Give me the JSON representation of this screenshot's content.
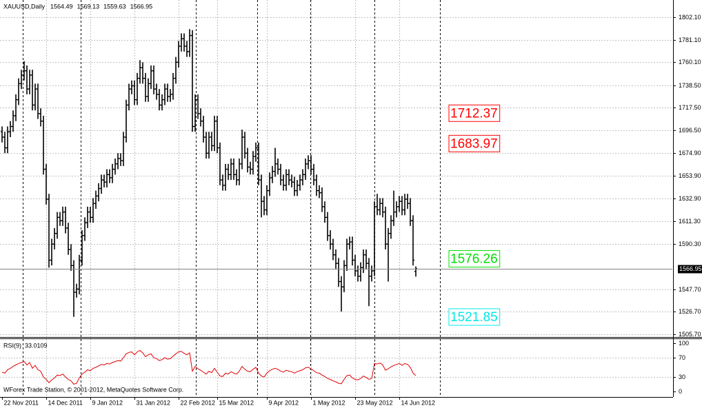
{
  "chart_data": {
    "type": "ohlc",
    "title": "XAUUSD,Daily",
    "footer": "WForex Trade Station, © 2001-2012, MetaQuotes Software Corp.",
    "color": "#000000",
    "grid": true,
    "xlim": [
      -0.75,
      243
    ],
    "xticks": [
      {
        "value": 0,
        "label": "22 Nov 2011"
      },
      {
        "value": 16,
        "label": "14 Dec 2011"
      },
      {
        "value": 32,
        "label": "9 Jan 2012"
      },
      {
        "value": 48,
        "label": "31 Jan 2012"
      },
      {
        "value": 64,
        "label": "22 Feb 2012"
      },
      {
        "value": 78,
        "label": "15 Mar 2012"
      },
      {
        "value": 96,
        "label": "9 Apr 2012"
      },
      {
        "value": 112,
        "label": "1 May 2012"
      },
      {
        "value": 128,
        "label": "23 May 2012"
      },
      {
        "value": 144,
        "label": "14 Jun 2012"
      }
    ],
    "ylim": [
      1503.8,
      1818.2
    ],
    "yticks": [
      {
        "value": 1802.1,
        "label": "1802.10"
      },
      {
        "value": 1781.1,
        "label": "1781.10"
      },
      {
        "value": 1760.1,
        "label": "1760.10"
      },
      {
        "value": 1738.5,
        "label": "1738.50"
      },
      {
        "value": 1717.5,
        "label": "1717.50"
      },
      {
        "value": 1696.5,
        "label": "1696.50"
      },
      {
        "value": 1674.9,
        "label": "1674.90"
      },
      {
        "value": 1653.9,
        "label": "1653.90"
      },
      {
        "value": 1632.9,
        "label": "1632.90"
      },
      {
        "value": 1611.3,
        "label": "1611.30"
      },
      {
        "value": 1590.3,
        "label": "1590.30"
      },
      {
        "value": 1547.7,
        "label": "1547.70"
      },
      {
        "value": 1526.7,
        "label": "1526.70"
      },
      {
        "value": 1505.7,
        "label": "1505.70"
      }
    ],
    "open": [
      1695,
      1690,
      1680,
      1695,
      1700,
      1710,
      1725,
      1740,
      1748,
      1752,
      1735,
      1748,
      1720,
      1735,
      1712,
      1705,
      1660,
      1632,
      1575,
      1590,
      1600,
      1615,
      1612,
      1620,
      1605,
      1585,
      1570,
      1545,
      1548,
      1575,
      1598,
      1610,
      1620,
      1615,
      1628,
      1635,
      1642,
      1650,
      1648,
      1655,
      1652,
      1660,
      1665,
      1670,
      1668,
      1690,
      1720,
      1735,
      1738,
      1725,
      1745,
      1755,
      1745,
      1728,
      1740,
      1752,
      1735,
      1730,
      1720,
      1725,
      1735,
      1728,
      1730,
      1745,
      1760,
      1775,
      1782,
      1775,
      1770,
      1785,
      1700,
      1725,
      1712,
      1705,
      1690,
      1675,
      1690,
      1682,
      1705,
      1680,
      1650,
      1645,
      1660,
      1655,
      1665,
      1655,
      1650,
      1665,
      1690,
      1675,
      1662,
      1660,
      1672,
      1680,
      1650,
      1630,
      1622,
      1640,
      1652,
      1658,
      1665,
      1660,
      1650,
      1645,
      1655,
      1650,
      1648,
      1640,
      1645,
      1650,
      1655,
      1665,
      1668,
      1660,
      1650,
      1640,
      1638,
      1625,
      1615,
      1598,
      1590,
      1580,
      1572,
      1555,
      1550,
      1570,
      1590,
      1592,
      1575,
      1565,
      1560,
      1568,
      1580,
      1572,
      1560,
      1565,
      1625,
      1622,
      1628,
      1620,
      1590,
      1600,
      1612,
      1620,
      1625,
      1630,
      1622,
      1632,
      1628,
      1612,
      1564.49
    ],
    "high": [
      1700,
      1695,
      1700,
      1705,
      1715,
      1730,
      1745,
      1753,
      1761,
      1757,
      1753,
      1753,
      1740,
      1740,
      1717,
      1710,
      1665,
      1637,
      1595,
      1605,
      1620,
      1620,
      1625,
      1625,
      1610,
      1590,
      1575,
      1553,
      1580,
      1603,
      1615,
      1625,
      1625,
      1633,
      1640,
      1647,
      1655,
      1655,
      1660,
      1660,
      1665,
      1670,
      1675,
      1675,
      1695,
      1725,
      1740,
      1743,
      1743,
      1750,
      1762,
      1760,
      1750,
      1745,
      1757,
      1757,
      1740,
      1735,
      1730,
      1740,
      1740,
      1735,
      1750,
      1765,
      1780,
      1787,
      1787,
      1780,
      1791,
      1790,
      1730,
      1730,
      1717,
      1710,
      1695,
      1695,
      1695,
      1710,
      1710,
      1685,
      1655,
      1665,
      1665,
      1670,
      1670,
      1660,
      1670,
      1697,
      1695,
      1680,
      1667,
      1677,
      1685,
      1685,
      1655,
      1635,
      1645,
      1657,
      1663,
      1680,
      1670,
      1665,
      1655,
      1660,
      1660,
      1655,
      1653,
      1650,
      1655,
      1660,
      1670,
      1673,
      1673,
      1665,
      1655,
      1645,
      1643,
      1630,
      1620,
      1603,
      1595,
      1585,
      1577,
      1560,
      1575,
      1595,
      1597,
      1597,
      1580,
      1570,
      1573,
      1585,
      1585,
      1577,
      1570,
      1630,
      1637,
      1633,
      1633,
      1625,
      1605,
      1617,
      1640,
      1630,
      1635,
      1635,
      1637,
      1637,
      1633,
      1617,
      1569.13
    ],
    "low": [
      1685,
      1675,
      1675,
      1690,
      1695,
      1705,
      1720,
      1735,
      1743,
      1730,
      1730,
      1715,
      1715,
      1707,
      1700,
      1655,
      1627,
      1568,
      1570,
      1585,
      1595,
      1607,
      1607,
      1600,
      1580,
      1565,
      1522,
      1540,
      1543,
      1570,
      1593,
      1605,
      1610,
      1610,
      1623,
      1630,
      1637,
      1643,
      1643,
      1647,
      1647,
      1655,
      1660,
      1663,
      1663,
      1685,
      1715,
      1730,
      1720,
      1720,
      1740,
      1740,
      1723,
      1723,
      1735,
      1730,
      1725,
      1715,
      1715,
      1720,
      1723,
      1723,
      1725,
      1740,
      1755,
      1770,
      1770,
      1765,
      1765,
      1695,
      1695,
      1707,
      1700,
      1685,
      1670,
      1670,
      1677,
      1677,
      1675,
      1645,
      1640,
      1640,
      1650,
      1650,
      1650,
      1645,
      1645,
      1660,
      1670,
      1657,
      1655,
      1655,
      1667,
      1645,
      1615,
      1617,
      1617,
      1635,
      1647,
      1653,
      1655,
      1645,
      1640,
      1640,
      1645,
      1643,
      1635,
      1635,
      1640,
      1645,
      1650,
      1660,
      1655,
      1645,
      1635,
      1633,
      1620,
      1610,
      1593,
      1585,
      1575,
      1567,
      1550,
      1527,
      1545,
      1565,
      1585,
      1570,
      1560,
      1555,
      1555,
      1563,
      1567,
      1532,
      1555,
      1560,
      1617,
      1617,
      1615,
      1585,
      1555,
      1595,
      1607,
      1615,
      1620,
      1617,
      1617,
      1623,
      1607,
      1570,
      1559.63
    ],
    "close": [
      1690,
      1680,
      1695,
      1700,
      1710,
      1725,
      1740,
      1748,
      1752,
      1735,
      1748,
      1720,
      1735,
      1712,
      1705,
      1660,
      1632,
      1575,
      1590,
      1600,
      1615,
      1612,
      1620,
      1605,
      1585,
      1570,
      1545,
      1548,
      1575,
      1598,
      1610,
      1620,
      1615,
      1628,
      1635,
      1642,
      1650,
      1648,
      1655,
      1652,
      1660,
      1665,
      1670,
      1668,
      1690,
      1720,
      1735,
      1738,
      1725,
      1745,
      1755,
      1745,
      1728,
      1740,
      1752,
      1735,
      1730,
      1720,
      1725,
      1735,
      1728,
      1730,
      1745,
      1760,
      1775,
      1782,
      1775,
      1770,
      1785,
      1700,
      1725,
      1712,
      1705,
      1690,
      1675,
      1690,
      1682,
      1705,
      1680,
      1650,
      1645,
      1660,
      1655,
      1665,
      1655,
      1650,
      1665,
      1690,
      1675,
      1662,
      1660,
      1672,
      1680,
      1650,
      1630,
      1622,
      1640,
      1652,
      1658,
      1665,
      1660,
      1650,
      1645,
      1655,
      1650,
      1648,
      1640,
      1645,
      1650,
      1655,
      1665,
      1668,
      1660,
      1650,
      1640,
      1638,
      1625,
      1615,
      1598,
      1590,
      1580,
      1572,
      1555,
      1550,
      1570,
      1590,
      1592,
      1575,
      1565,
      1560,
      1568,
      1580,
      1572,
      1560,
      1565,
      1625,
      1622,
      1628,
      1620,
      1590,
      1600,
      1612,
      1620,
      1625,
      1630,
      1622,
      1632,
      1628,
      1612,
      1575,
      1566.95
    ],
    "levels": [
      {
        "value": 1712.37,
        "color": "#ff0000"
      },
      {
        "value": 1683.97,
        "color": "#ff0000"
      },
      {
        "value": 1576.26,
        "color": "#00e000"
      },
      {
        "value": 1521.85,
        "color": "#00e8e8"
      }
    ],
    "rsi": {
      "name": "RSI(9)",
      "color": "#e00000",
      "ylim": [
        -10,
        108.6
      ],
      "yticks": [
        0,
        30,
        70,
        100
      ],
      "values": [
        40,
        38,
        45,
        48,
        52,
        55,
        58,
        60,
        62,
        55,
        60,
        48,
        54,
        45,
        42,
        30,
        25,
        18,
        24,
        28,
        34,
        33,
        36,
        30,
        25,
        22,
        15,
        17,
        28,
        36,
        40,
        45,
        43,
        48,
        50,
        53,
        56,
        55,
        58,
        57,
        60,
        62,
        64,
        63,
        70,
        78,
        81,
        82,
        76,
        82,
        85,
        80,
        72,
        76,
        78,
        70,
        68,
        64,
        66,
        70,
        67,
        68,
        73,
        78,
        82,
        83,
        79,
        76,
        80,
        42,
        52,
        47,
        44,
        40,
        36,
        42,
        39,
        48,
        40,
        32,
        31,
        38,
        36,
        41,
        38,
        36,
        42,
        52,
        46,
        42,
        41,
        46,
        50,
        38,
        32,
        30,
        38,
        43,
        46,
        48,
        46,
        42,
        40,
        44,
        42,
        41,
        38,
        41,
        43,
        45,
        49,
        50,
        47,
        43,
        39,
        38,
        34,
        31,
        27,
        25,
        22,
        20,
        17,
        16,
        25,
        33,
        34,
        28,
        25,
        24,
        27,
        32,
        29,
        25,
        27,
        58,
        57,
        59,
        55,
        44,
        47,
        51,
        54,
        56,
        58,
        54,
        58,
        56,
        50,
        38,
        33.0109
      ]
    }
  }
}
